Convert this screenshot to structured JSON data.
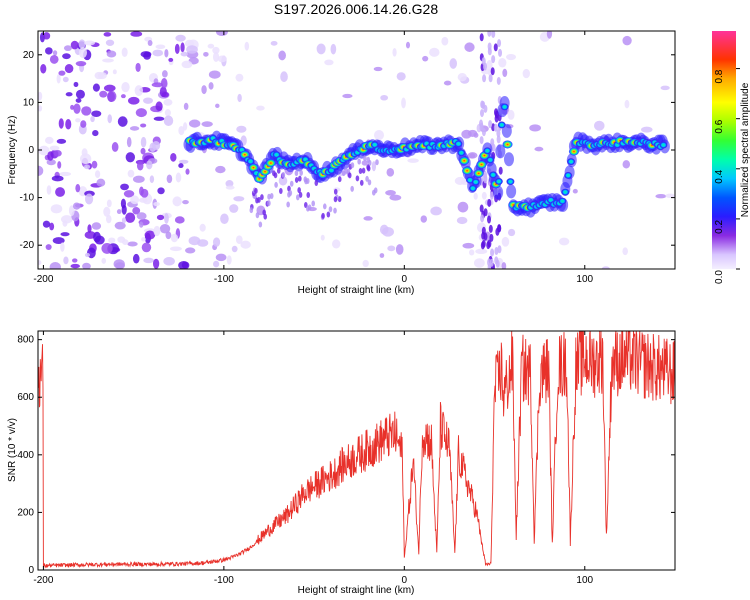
{
  "title": "S197.2026.006.14.26.G28",
  "chart_data": [
    {
      "type": "heatmap",
      "id": "spectrogram",
      "xlabel": "Height of straight line (km)",
      "ylabel": "Frequency (Hz)",
      "xlim": [
        -203,
        150
      ],
      "ylim": [
        -25,
        25
      ],
      "xticks": [
        -200,
        -100,
        0,
        100
      ],
      "yticks": [
        -20,
        -10,
        0,
        10,
        20
      ],
      "colorbar": {
        "label": "Normalized spectral amplitude",
        "range": [
          0,
          0.95
        ],
        "ticks": [
          0.0,
          0.2,
          0.4,
          0.6,
          0.8
        ],
        "tick_labels": [
          "0.0",
          "0.2",
          "0.4",
          "0.6",
          "0.8"
        ]
      },
      "signal_track": [
        {
          "x": -120,
          "y": 1.5
        },
        {
          "x": -105,
          "y": 2
        },
        {
          "x": -95,
          "y": 1
        },
        {
          "x": -88,
          "y": -1
        },
        {
          "x": -80,
          "y": -6
        },
        {
          "x": -72,
          "y": -1
        },
        {
          "x": -65,
          "y": -3
        },
        {
          "x": -55,
          "y": -2
        },
        {
          "x": -48,
          "y": -5
        },
        {
          "x": -40,
          "y": -4
        },
        {
          "x": -30,
          "y": -1
        },
        {
          "x": -20,
          "y": 1
        },
        {
          "x": -10,
          "y": 0
        },
        {
          "x": 0,
          "y": 0.5
        },
        {
          "x": 10,
          "y": 1
        },
        {
          "x": 20,
          "y": 1
        },
        {
          "x": 30,
          "y": 1.5
        },
        {
          "x": 38,
          "y": -8
        },
        {
          "x": 46,
          "y": 0
        },
        {
          "x": 52,
          "y": -9
        },
        {
          "x": 55,
          "y": 12
        },
        {
          "x": 60,
          "y": -12
        },
        {
          "x": 70,
          "y": -12
        },
        {
          "x": 80,
          "y": -11
        },
        {
          "x": 88,
          "y": -11
        },
        {
          "x": 95,
          "y": 2
        },
        {
          "x": 105,
          "y": 1
        },
        {
          "x": 115,
          "y": 1.5
        },
        {
          "x": 130,
          "y": 1.5
        },
        {
          "x": 145,
          "y": 1
        }
      ]
    },
    {
      "type": "line",
      "id": "snr",
      "xlabel": "Height of straight line (km)",
      "ylabel": "SNR (10 * v/v)",
      "xlim": [
        -203,
        150
      ],
      "ylim": [
        0,
        830
      ],
      "xticks": [
        -200,
        -100,
        0,
        100
      ],
      "yticks": [
        0,
        200,
        400,
        600,
        800
      ],
      "color": "#e8312a",
      "series": [
        {
          "name": "SNR",
          "x": [
            -200,
            -180,
            -160,
            -140,
            -120,
            -110,
            -100,
            -95,
            -90,
            -85,
            -80,
            -75,
            -70,
            -65,
            -60,
            -55,
            -50,
            -45,
            -40,
            -35,
            -30,
            -25,
            -20,
            -15,
            -10,
            -5,
            -1,
            0,
            5,
            8,
            10,
            15,
            18,
            20,
            25,
            28,
            30,
            35,
            40,
            45,
            48,
            50,
            54,
            55,
            60,
            62,
            65,
            70,
            72,
            75,
            80,
            82,
            85,
            90,
            92,
            95,
            100,
            105,
            110,
            112,
            115,
            120,
            125,
            130,
            135,
            140,
            145,
            150
          ],
          "y": [
            15,
            18,
            20,
            20,
            22,
            25,
            35,
            45,
            60,
            80,
            110,
            140,
            165,
            190,
            230,
            270,
            290,
            310,
            330,
            360,
            380,
            400,
            420,
            440,
            460,
            470,
            400,
            40,
            380,
            60,
            480,
            440,
            60,
            500,
            420,
            60,
            400,
            300,
            200,
            20,
            20,
            620,
            700,
            600,
            720,
            120,
            700,
            680,
            110,
            680,
            700,
            90,
            700,
            720,
            100,
            700,
            740,
            720,
            740,
            110,
            720,
            730,
            740,
            720,
            710,
            700,
            690,
            680
          ]
        }
      ]
    }
  ]
}
